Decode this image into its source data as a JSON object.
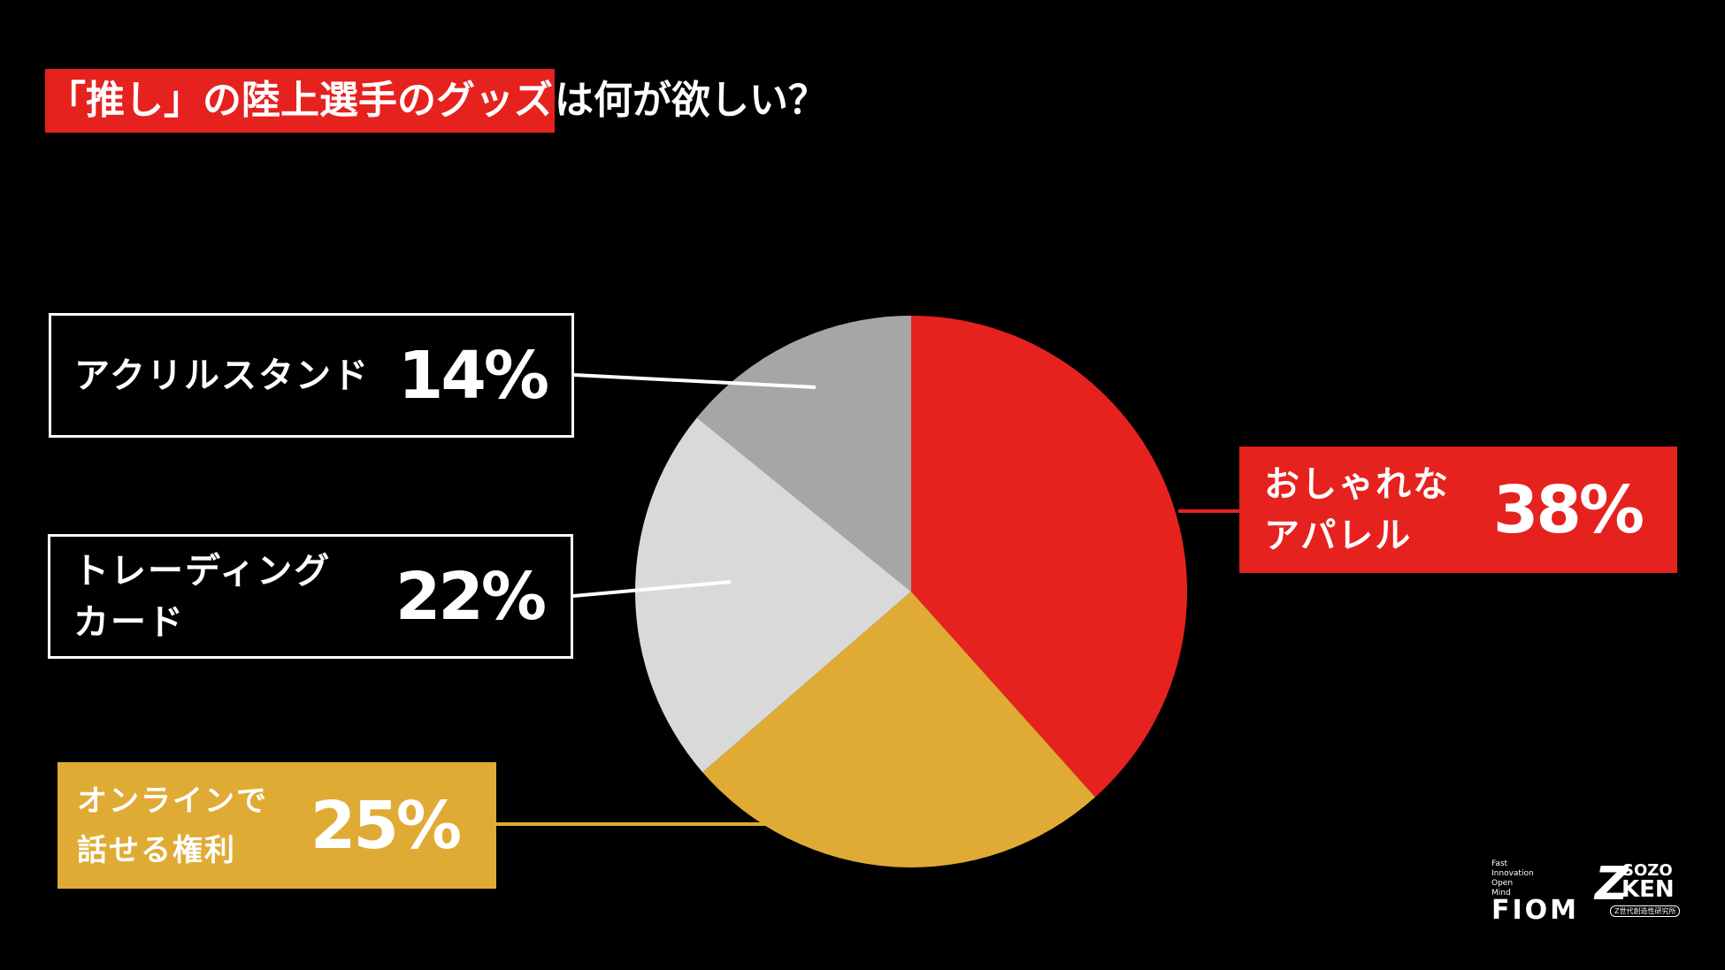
{
  "title": {
    "highlight": "「推し」の陸上選手のグッズ",
    "rest": "は何が欲しい？"
  },
  "colors": {
    "red": "#e6221f",
    "yellow": "#e0ab35",
    "light_gray": "#d9d9d9",
    "gray": "#a6a6a6",
    "background": "#000000"
  },
  "chart_data": {
    "type": "pie",
    "title": "「推し」の陸上選手のグッズは何が欲しい？",
    "start": "12 o'clock, clockwise",
    "slices": [
      {
        "label": "おしゃれな\nアパレル",
        "value": 38,
        "display": "38%",
        "color": "#e6221f"
      },
      {
        "label": "オンラインで\n話せる権利",
        "value": 25,
        "display": "25%",
        "color": "#e0ab35"
      },
      {
        "label": "トレーディング\nカード",
        "value": 22,
        "display": "22%",
        "color": "#d9d9d9"
      },
      {
        "label": "アクリルスタンド",
        "value": 14,
        "display": "14%",
        "color": "#a6a6a6"
      }
    ]
  },
  "logos": {
    "fiom_tagline": [
      "Fast",
      "Innovation",
      "Open",
      "Mind"
    ],
    "fiom": "FIOM",
    "z": "Z",
    "sozo": "SOZO",
    "ken": "KEN",
    "zsub": "Z世代創造性研究所"
  }
}
